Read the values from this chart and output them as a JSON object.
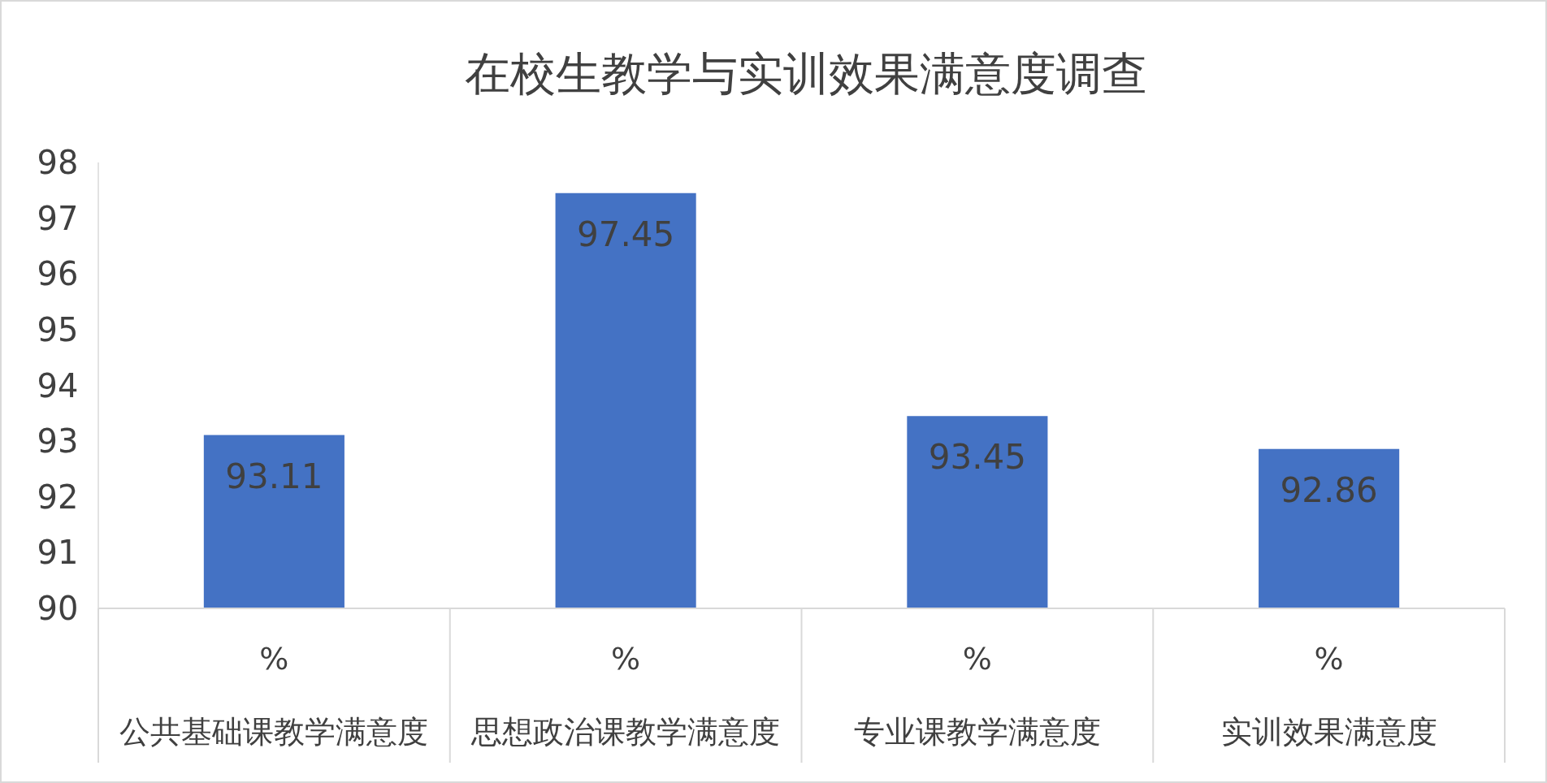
{
  "chart_data": {
    "type": "bar",
    "title": "在校生教学与实训效果满意度调查",
    "categories": [
      "公共基础课教学满意度",
      "思想政治课教学满意度",
      "专业课教学满意度",
      "实训效果满意度"
    ],
    "values": [
      93.11,
      97.45,
      93.45,
      92.86
    ],
    "color": "#4472c4",
    "data_labels": true,
    "ylim": [
      90,
      98
    ],
    "yticks": [
      90,
      91,
      92,
      93,
      94,
      95,
      96,
      97,
      98
    ],
    "grid": false,
    "annotations": [
      "%",
      "%",
      "%",
      "%"
    ]
  }
}
